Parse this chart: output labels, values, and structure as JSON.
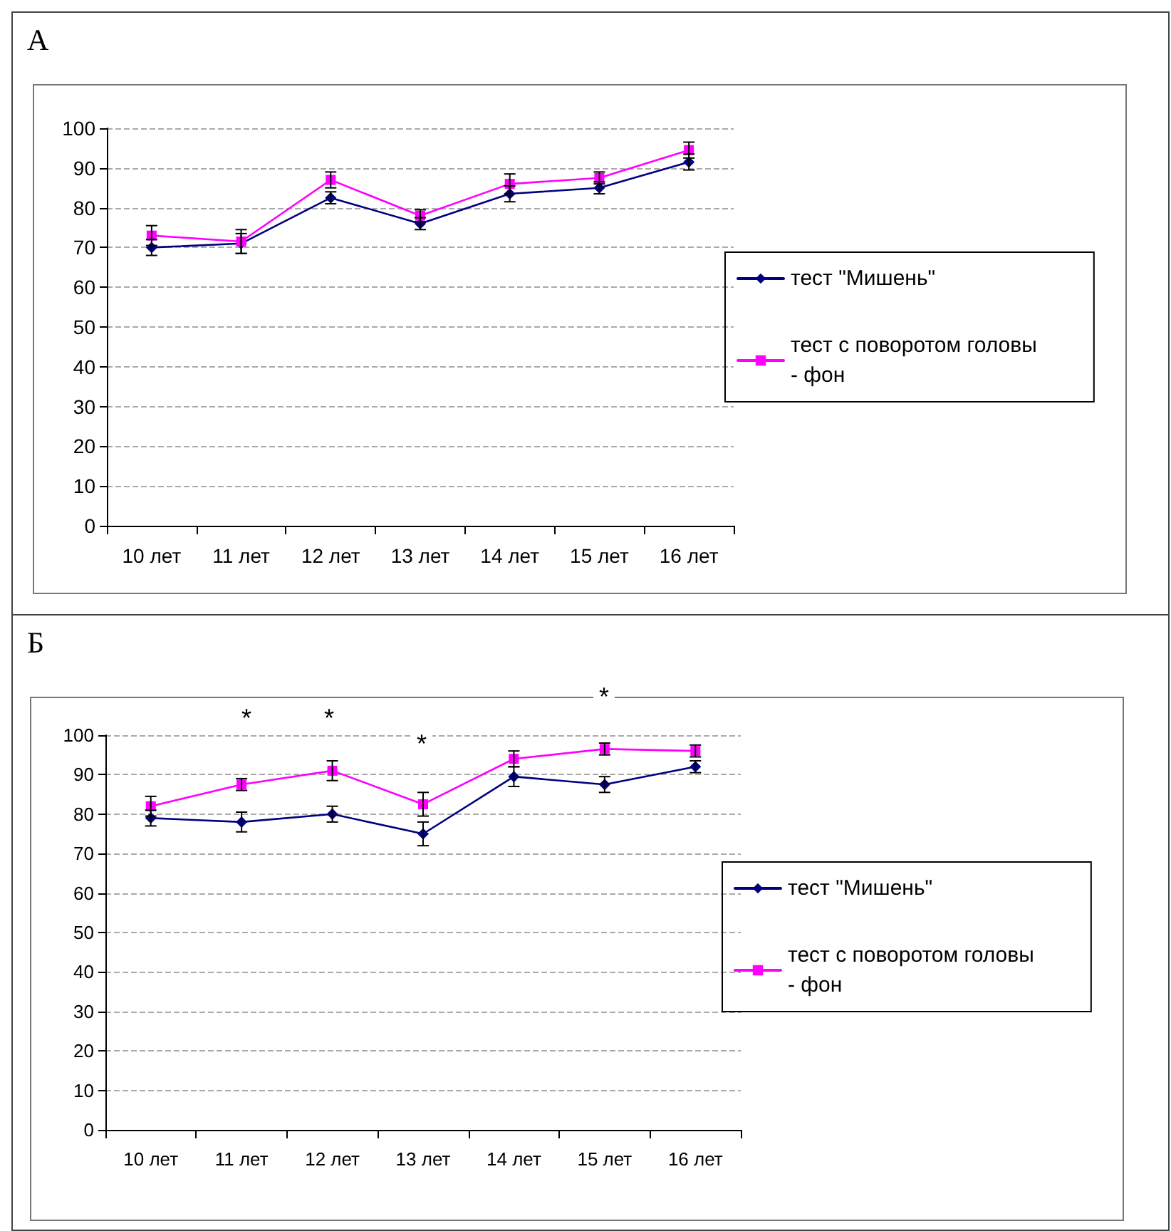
{
  "chart_data": [
    {
      "type": "line",
      "title": "А",
      "categories": [
        "10 лет",
        "11 лет",
        "12 лет",
        "13 лет",
        "14 лет",
        "15 лет",
        "16 лет"
      ],
      "series": [
        {
          "name": "тест \"Мишень\"",
          "color": "#000080",
          "marker": "diamond",
          "values": [
            70,
            71,
            82.5,
            76,
            83.5,
            85,
            91.5
          ],
          "errors": [
            2,
            2.5,
            1.5,
            1.5,
            2,
            1.5,
            2
          ]
        },
        {
          "name": "тест с поворотом головы - фон",
          "color": "#ff00ff",
          "marker": "square",
          "values": [
            73,
            71.5,
            87,
            78,
            86,
            87.5,
            94.5
          ],
          "errors": [
            2.5,
            3,
            2,
            1.5,
            2.5,
            1.5,
            2
          ]
        }
      ],
      "ylim": [
        0,
        100
      ],
      "yticks": [
        0,
        10,
        20,
        30,
        40,
        50,
        60,
        70,
        80,
        90,
        100
      ],
      "grid": "y",
      "legend": "right",
      "line_style": "solid"
    },
    {
      "type": "line",
      "title": "Б",
      "categories": [
        "10 лет",
        "11 лет",
        "12 лет",
        "13 лет",
        "14 лет",
        "15 лет",
        "16 лет"
      ],
      "series": [
        {
          "name": "тест \"Мишень\"",
          "color": "#000080",
          "marker": "diamond",
          "values": [
            79,
            78,
            80,
            75,
            89.5,
            87.5,
            92
          ],
          "errors": [
            2,
            2.5,
            2,
            3,
            2.5,
            2,
            1.5
          ]
        },
        {
          "name": "тест с поворотом головы - фон",
          "color": "#ff00ff",
          "marker": "square",
          "values": [
            82,
            87.5,
            91,
            82.5,
            94,
            96.5,
            96
          ],
          "errors": [
            2.5,
            1.5,
            2.5,
            3,
            2,
            1.5,
            1.5
          ]
        }
      ],
      "ylim": [
        0,
        100
      ],
      "yticks": [
        0,
        10,
        20,
        30,
        40,
        50,
        60,
        70,
        80,
        90,
        100
      ],
      "grid": "y",
      "legend": "right",
      "line_style": "solid",
      "annotations": [
        "*",
        "*",
        "*",
        "*"
      ]
    }
  ]
}
